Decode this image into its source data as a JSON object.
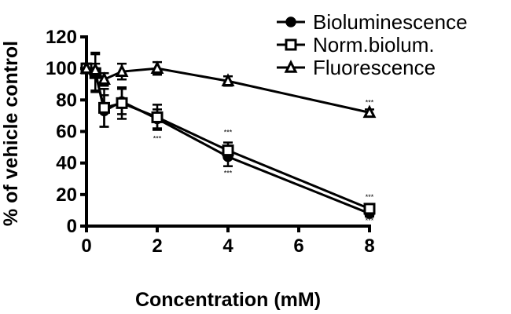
{
  "chart_data": {
    "type": "line",
    "title": "",
    "xlabel": "Concentration (mM)",
    "ylabel": "% of vehicle control",
    "xlim": [
      0,
      8
    ],
    "ylim": [
      0,
      120
    ],
    "xticks": [
      0,
      2,
      4,
      6,
      8
    ],
    "yticks": [
      0,
      20,
      40,
      60,
      80,
      100,
      120
    ],
    "x": [
      0,
      0.25,
      0.5,
      1,
      2,
      4,
      8
    ],
    "grid": false,
    "legend_position": "top-right",
    "series": [
      {
        "name": "Bioluminescence",
        "marker": "circle",
        "values": [
          100,
          98,
          73,
          79,
          68,
          44,
          8
        ],
        "err": [
          3,
          12,
          10,
          8,
          6,
          6,
          2
        ]
      },
      {
        "name": "Norm.biolum.",
        "marker": "square",
        "values": [
          100,
          97,
          75,
          78,
          69,
          48,
          11
        ],
        "err": [
          3,
          12,
          12,
          10,
          8,
          5,
          2
        ]
      },
      {
        "name": "Fluorescence",
        "marker": "triangle",
        "values": [
          100,
          99,
          93,
          98,
          100,
          92,
          72
        ],
        "err": [
          3,
          4,
          4,
          5,
          4,
          3,
          2
        ]
      }
    ],
    "annotations": [
      {
        "text": "***",
        "x": 2,
        "y": 54
      },
      {
        "text": "***",
        "x": 4,
        "y": 58
      },
      {
        "text": "***",
        "x": 4,
        "y": 32
      },
      {
        "text": "***",
        "x": 8,
        "y": 77
      },
      {
        "text": "***",
        "x": 8,
        "y": 17
      },
      {
        "text": "***",
        "x": 8,
        "y": 2
      }
    ]
  }
}
